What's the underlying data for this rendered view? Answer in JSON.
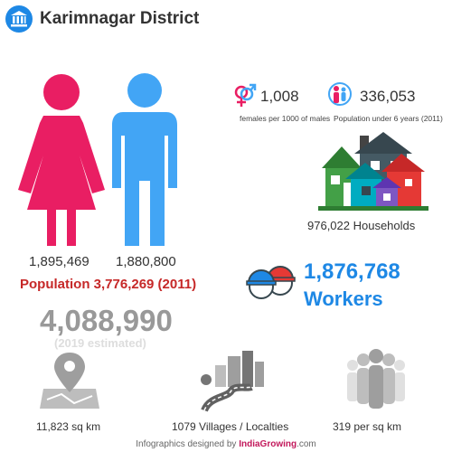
{
  "header": {
    "title": "Karimnagar District",
    "icon": "government-building-icon"
  },
  "population": {
    "female": "1,895,469",
    "male": "1,880,800",
    "total_line": "Population 3,776,269 (2011)",
    "estimated": "4,088,990",
    "estimated_note": "(2019 estimated)"
  },
  "stats": {
    "sex_ratio": {
      "value": "1,008",
      "caption": "females per 1000 of males"
    },
    "under_six": {
      "value": "336,053",
      "caption": "Population under 6 years (2011)"
    }
  },
  "households": {
    "label": "976,022 Households"
  },
  "workers": {
    "value": "1,876,768",
    "label": "Workers"
  },
  "bottom": {
    "area": "11,823 sq km",
    "villages": "1079 Villages / Localties",
    "density": "319 per sq km"
  },
  "footer": {
    "prefix": "Infographics designed by ",
    "brand": "IndiaGrowing",
    "suffix": ".com"
  },
  "colors": {
    "female": "#e91e63",
    "male": "#42a5f5",
    "accent": "#1e88e5",
    "population": "#c62828"
  }
}
